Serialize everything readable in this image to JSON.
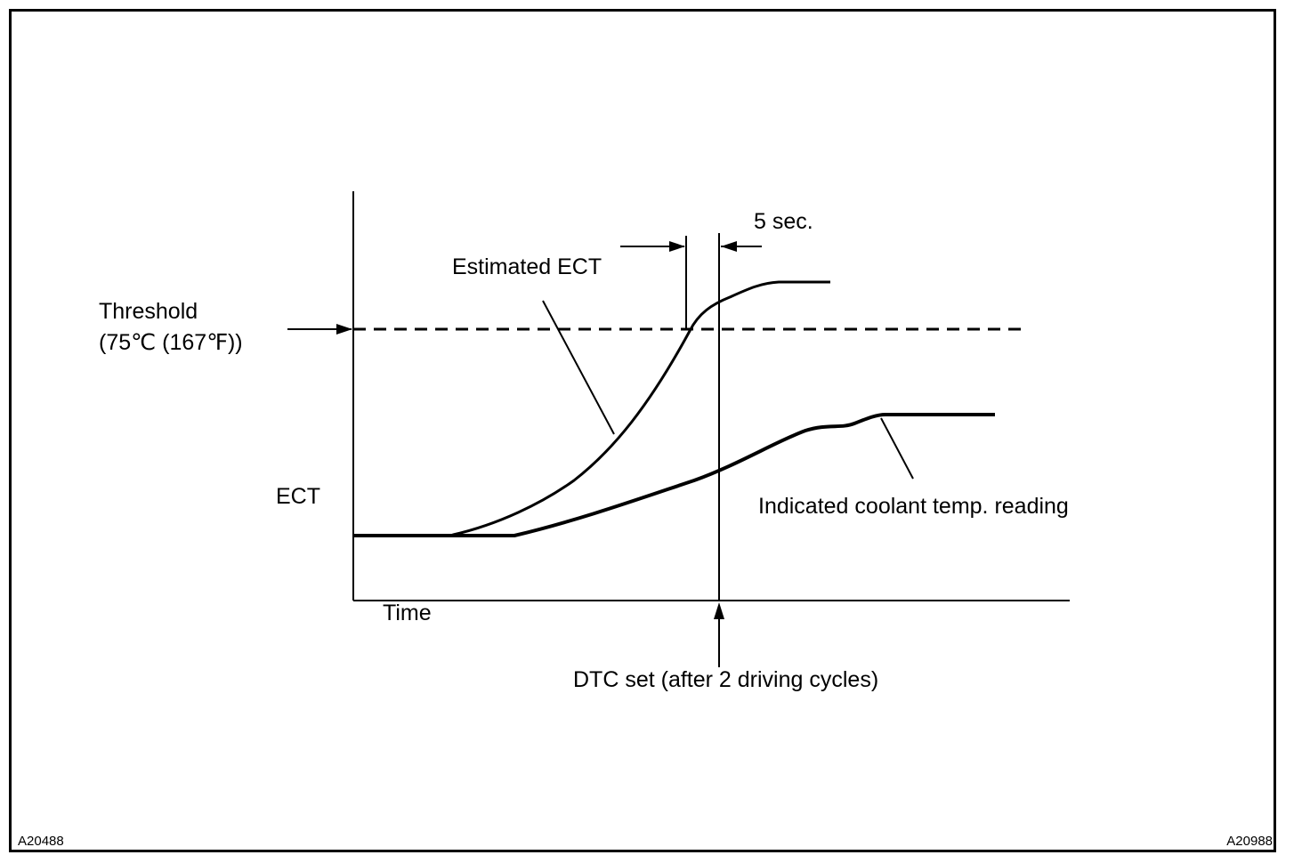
{
  "colors": {
    "ink": "#000000",
    "background": "#ffffff"
  },
  "labels": {
    "five_sec": "5 sec.",
    "estimated_ect": "Estimated ECT",
    "threshold_line1": "Threshold",
    "threshold_line2": "(75℃ (167℉))",
    "ect_axis": "ECT",
    "time_axis": "Time",
    "indicated_reading": "Indicated coolant temp. reading",
    "dtc_set": "DTC set (after 2 driving cycles)"
  },
  "codes": {
    "left": "A20488",
    "right": "A20988"
  }
}
